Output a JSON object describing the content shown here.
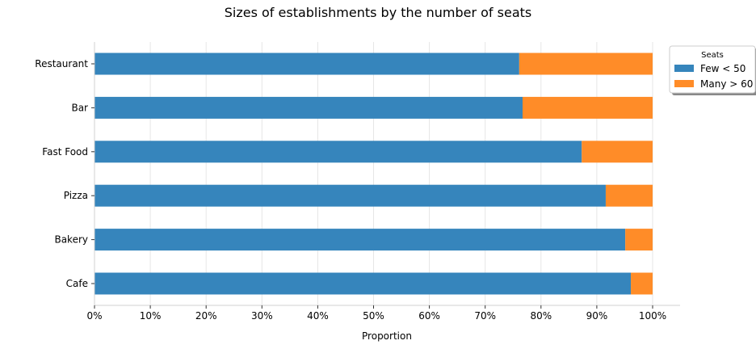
{
  "chart_data": {
    "type": "bar",
    "orientation": "horizontal",
    "stacked": true,
    "title": "Sizes of establishments by the number of seats",
    "xlabel": "Proportion",
    "ylabel": "",
    "xlim": [
      0,
      1.05
    ],
    "xticks": [
      0,
      0.1,
      0.2,
      0.3,
      0.4,
      0.5,
      0.6,
      0.7,
      0.8,
      0.9,
      1.0
    ],
    "xtick_labels": [
      "0%",
      "10%",
      "20%",
      "30%",
      "40%",
      "50%",
      "60%",
      "70%",
      "80%",
      "90%",
      "100%"
    ],
    "categories": [
      "Restaurant",
      "Bar",
      "Fast Food",
      "Pizza",
      "Bakery",
      "Cafe"
    ],
    "series": [
      {
        "name": "Few < 50",
        "color": "#3685bc",
        "values": [
          0.761,
          0.767,
          0.873,
          0.916,
          0.951,
          0.961
        ]
      },
      {
        "name": "Many > 60",
        "color": "#ff8c28",
        "values": [
          0.239,
          0.233,
          0.127,
          0.084,
          0.049,
          0.039
        ]
      }
    ],
    "legend": {
      "title": "Seats",
      "position": "upper-right-outside"
    },
    "grid": {
      "x": true,
      "y": false
    }
  }
}
